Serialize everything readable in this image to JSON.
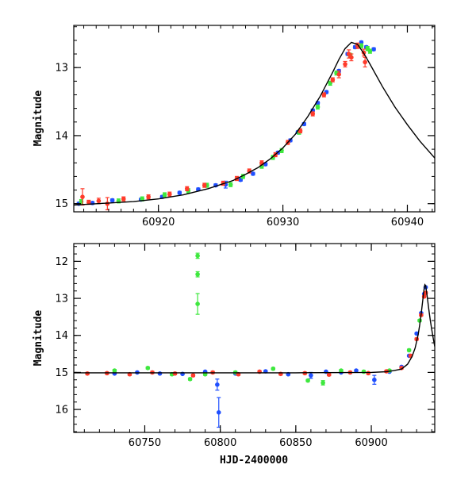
{
  "colors": {
    "blue": "#1f4fff",
    "green": "#3ee83e",
    "red": "#ff3b2b",
    "model": "#000000"
  },
  "chart_data": [
    {
      "type": "scatter",
      "title": "",
      "xlabel": "",
      "ylabel": "Magnitude",
      "xlim": [
        60913.2,
        60942.2
      ],
      "ylim": [
        15.12,
        12.38
      ],
      "y_inverted": true,
      "grid": false,
      "x_ticks": [
        60920,
        60930,
        60940
      ],
      "y_ticks": [
        13,
        14,
        15
      ],
      "series": [
        {
          "color": "#1f4fff",
          "points": [
            [
              60913.6,
              15.0
            ],
            [
              60914.7,
              14.99
            ],
            [
              60916.3,
              14.95
            ],
            [
              60918.6,
              14.94
            ],
            [
              60920.3,
              14.9
            ],
            [
              60921.7,
              14.84
            ],
            [
              60923.2,
              14.79
            ],
            [
              60924.6,
              14.73
            ],
            [
              60925.4,
              14.72
            ],
            [
              60926.6,
              14.65
            ],
            [
              60927.6,
              14.56
            ],
            [
              60928.6,
              14.42
            ],
            [
              60929.6,
              14.25
            ],
            [
              60930.6,
              14.07
            ],
            [
              60931.2,
              13.95
            ],
            [
              60931.7,
              13.83
            ],
            [
              60932.4,
              13.63
            ],
            [
              60932.8,
              13.52
            ],
            [
              60933.5,
              13.36
            ],
            [
              60934.5,
              13.05
            ],
            [
              60935.2,
              12.8
            ],
            [
              60935.8,
              12.7
            ],
            [
              60936.3,
              12.63
            ],
            [
              60936.7,
              12.7
            ],
            [
              60937.3,
              12.73
            ]
          ],
          "errors": [
            0.02,
            0.02,
            0.02,
            0.02,
            0.02,
            0.02,
            0.02,
            0.02,
            0.05,
            0.02,
            0.02,
            0.02,
            0.02,
            0.02,
            0.02,
            0.02,
            0.02,
            0.02,
            0.02,
            0.02,
            0.02,
            0.02,
            0.02,
            0.02,
            0.02
          ]
        },
        {
          "color": "#3ee83e",
          "points": [
            [
              60913.8,
              14.97
            ],
            [
              60916.8,
              14.96
            ],
            [
              60918.7,
              14.93
            ],
            [
              60920.5,
              14.87
            ],
            [
              60922.4,
              14.81
            ],
            [
              60923.9,
              14.73
            ],
            [
              60925.8,
              14.72
            ],
            [
              60926.8,
              14.6
            ],
            [
              60928.3,
              14.45
            ],
            [
              60929.2,
              14.32
            ],
            [
              60929.9,
              14.22
            ],
            [
              60931.3,
              13.95
            ],
            [
              60932.8,
              13.58
            ],
            [
              60933.8,
              13.23
            ],
            [
              60934.3,
              13.08
            ],
            [
              60935.4,
              12.82
            ],
            [
              60936.3,
              12.68
            ],
            [
              60936.8,
              12.72
            ],
            [
              60937.0,
              12.76
            ]
          ],
          "errors": [
            0.03,
            0.03,
            0.03,
            0.03,
            0.03,
            0.03,
            0.03,
            0.03,
            0.03,
            0.03,
            0.03,
            0.03,
            0.03,
            0.03,
            0.03,
            0.03,
            0.03,
            0.03,
            0.03
          ]
        },
        {
          "color": "#ff3b2b",
          "points": [
            [
              60913.9,
              14.9
            ],
            [
              60914.4,
              14.98
            ],
            [
              60915.2,
              14.96
            ],
            [
              60915.9,
              15.0
            ],
            [
              60917.2,
              14.93
            ],
            [
              60919.2,
              14.9
            ],
            [
              60920.9,
              14.86
            ],
            [
              60922.3,
              14.78
            ],
            [
              60923.7,
              14.73
            ],
            [
              60925.2,
              14.7
            ],
            [
              60926.3,
              14.63
            ],
            [
              60927.3,
              14.52
            ],
            [
              60928.3,
              14.4
            ],
            [
              60929.4,
              14.28
            ],
            [
              60930.4,
              14.1
            ],
            [
              60931.4,
              13.93
            ],
            [
              60932.4,
              13.68
            ],
            [
              60933.3,
              13.4
            ],
            [
              60934.0,
              13.18
            ],
            [
              60934.5,
              13.1
            ],
            [
              60935.0,
              12.95
            ],
            [
              60935.3,
              12.8
            ],
            [
              60935.5,
              12.85
            ],
            [
              60936.0,
              12.68
            ],
            [
              60936.5,
              12.78
            ],
            [
              60936.6,
              12.92
            ]
          ],
          "errors": [
            0.12,
            0.03,
            0.04,
            0.09,
            0.03,
            0.03,
            0.03,
            0.03,
            0.03,
            0.03,
            0.03,
            0.03,
            0.03,
            0.03,
            0.03,
            0.03,
            0.03,
            0.03,
            0.03,
            0.05,
            0.04,
            0.06,
            0.05,
            0.04,
            0.05,
            0.07
          ]
        }
      ],
      "model_curve": [
        [
          60913.2,
          15.02
        ],
        [
          60916,
          14.99
        ],
        [
          60918,
          14.97
        ],
        [
          60920,
          14.93
        ],
        [
          60922,
          14.87
        ],
        [
          60924,
          14.78
        ],
        [
          60926,
          14.66
        ],
        [
          60927,
          14.57
        ],
        [
          60928,
          14.47
        ],
        [
          60929,
          14.34
        ],
        [
          60930,
          14.18
        ],
        [
          60931,
          13.98
        ],
        [
          60932,
          13.72
        ],
        [
          60933,
          13.42
        ],
        [
          60934,
          13.07
        ],
        [
          60934.5,
          12.88
        ],
        [
          60935,
          12.72
        ],
        [
          60935.5,
          12.63
        ],
        [
          60936,
          12.66
        ],
        [
          60936.5,
          12.79
        ],
        [
          60937,
          12.95
        ],
        [
          60938,
          13.28
        ],
        [
          60939,
          13.58
        ],
        [
          60940,
          13.84
        ],
        [
          60941,
          14.08
        ],
        [
          60942.2,
          14.33
        ]
      ]
    },
    {
      "type": "scatter",
      "title": "",
      "xlabel": "HJD-2400000",
      "ylabel": "Magnitude",
      "xlim": [
        60703,
        60942
      ],
      "ylim": [
        16.62,
        11.52
      ],
      "y_inverted": true,
      "grid": false,
      "x_ticks": [
        60750,
        60800,
        60850,
        60900
      ],
      "y_ticks": [
        12,
        13,
        14,
        15,
        16
      ],
      "series": [
        {
          "color": "#1f4fff",
          "points": [
            [
              60730,
              15.03
            ],
            [
              60745,
              15.0
            ],
            [
              60760,
              15.03
            ],
            [
              60775,
              15.04
            ],
            [
              60790,
              14.98
            ],
            [
              60798,
              15.33
            ],
            [
              60799,
              16.08
            ],
            [
              60810,
              15.03
            ],
            [
              60830,
              14.97
            ],
            [
              60845,
              15.05
            ],
            [
              60860,
              15.08
            ],
            [
              60870,
              14.98
            ],
            [
              60880,
              15.0
            ],
            [
              60890,
              14.95
            ],
            [
              60902,
              15.2
            ],
            [
              60912,
              14.98
            ],
            [
              60920,
              14.85
            ],
            [
              60925,
              14.55
            ],
            [
              60930,
              13.95
            ],
            [
              60933,
              13.4
            ],
            [
              60935,
              12.88
            ],
            [
              60936,
              12.7
            ]
          ],
          "errors": [
            0.02,
            0.02,
            0.02,
            0.02,
            0.02,
            0.15,
            0.4,
            0.02,
            0.02,
            0.02,
            0.08,
            0.02,
            0.02,
            0.02,
            0.12,
            0.02,
            0.02,
            0.02,
            0.02,
            0.02,
            0.02,
            0.02
          ]
        },
        {
          "color": "#3ee83e",
          "points": [
            [
              60730,
              14.95
            ],
            [
              60752,
              14.88
            ],
            [
              60768,
              15.05
            ],
            [
              60780,
              15.18
            ],
            [
              60785,
              11.85
            ],
            [
              60785,
              12.35
            ],
            [
              60785,
              13.15
            ],
            [
              60790,
              15.05
            ],
            [
              60810,
              15.0
            ],
            [
              60835,
              14.9
            ],
            [
              60858,
              15.22
            ],
            [
              60868,
              15.28
            ],
            [
              60880,
              14.95
            ],
            [
              60895,
              14.98
            ],
            [
              60912,
              14.95
            ],
            [
              60925,
              14.4
            ],
            [
              60932,
              13.6
            ]
          ],
          "errors": [
            0.03,
            0.03,
            0.03,
            0.03,
            0.07,
            0.07,
            0.28,
            0.03,
            0.03,
            0.03,
            0.03,
            0.06,
            0.03,
            0.03,
            0.03,
            0.03,
            0.03
          ]
        },
        {
          "color": "#ff3b2b",
          "points": [
            [
              60712,
              15.03
            ],
            [
              60725,
              15.02
            ],
            [
              60740,
              15.05
            ],
            [
              60755,
              15.0
            ],
            [
              60770,
              15.03
            ],
            [
              60782,
              15.08
            ],
            [
              60795,
              15.0
            ],
            [
              60812,
              15.05
            ],
            [
              60826,
              14.98
            ],
            [
              60840,
              15.04
            ],
            [
              60856,
              15.02
            ],
            [
              60872,
              15.06
            ],
            [
              60886,
              15.0
            ],
            [
              60898,
              15.02
            ],
            [
              60910,
              14.97
            ],
            [
              60920,
              14.88
            ],
            [
              60926,
              14.55
            ],
            [
              60930,
              14.1
            ],
            [
              60933,
              13.45
            ],
            [
              60935,
              12.95
            ],
            [
              60936,
              12.85
            ]
          ],
          "errors": [
            0.03,
            0.03,
            0.03,
            0.03,
            0.03,
            0.03,
            0.03,
            0.03,
            0.03,
            0.03,
            0.03,
            0.03,
            0.03,
            0.03,
            0.03,
            0.03,
            0.03,
            0.03,
            0.03,
            0.03,
            0.03
          ]
        }
      ],
      "model_curve": [
        [
          60703,
          15.01
        ],
        [
          60850,
          15.01
        ],
        [
          60900,
          15.0
        ],
        [
          60910,
          14.98
        ],
        [
          60915,
          14.95
        ],
        [
          60920,
          14.91
        ],
        [
          60924,
          14.78
        ],
        [
          60927,
          14.57
        ],
        [
          60929,
          14.34
        ],
        [
          60931,
          13.98
        ],
        [
          60932,
          13.72
        ],
        [
          60933,
          13.42
        ],
        [
          60934,
          13.07
        ],
        [
          60935,
          12.72
        ],
        [
          60935.5,
          12.63
        ],
        [
          60936,
          12.66
        ],
        [
          60937,
          12.95
        ],
        [
          60938,
          13.28
        ],
        [
          60939,
          13.58
        ],
        [
          60940,
          13.84
        ],
        [
          60941,
          14.08
        ],
        [
          60942,
          14.3
        ]
      ]
    }
  ]
}
